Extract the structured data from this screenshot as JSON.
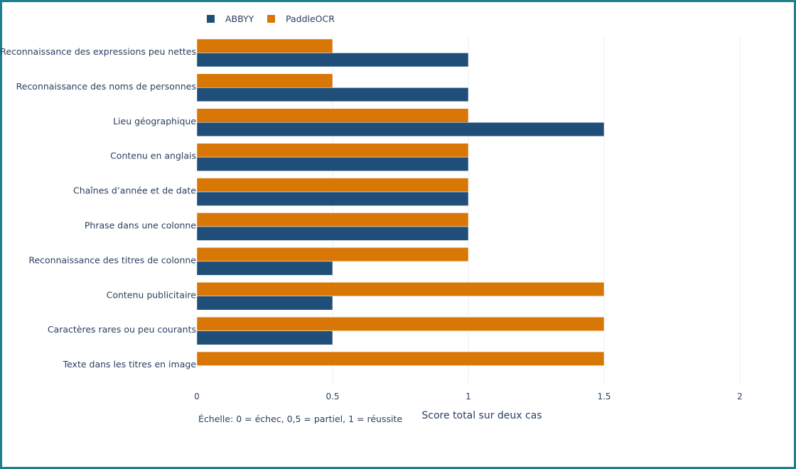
{
  "chart_data": {
    "type": "bar",
    "orientation": "horizontal",
    "categories": [
      "Reconnaissance des expressions peu nettes",
      "Reconnaissance des noms de personnes",
      "Lieu géographique",
      "Contenu en anglais",
      "Chaînes d’année et de date",
      "Phrase dans une colonne",
      "Reconnaissance des titres de colonne",
      "Contenu publicitaire",
      "Caractères rares ou peu courants",
      "Texte dans les titres en image"
    ],
    "series": [
      {
        "name": "ABBYY",
        "color": "#1f4e79",
        "values": [
          1,
          1,
          1.5,
          1,
          1,
          1,
          0.5,
          0.5,
          0.5,
          0
        ]
      },
      {
        "name": "PaddleOCR",
        "color": "#d97706",
        "values": [
          0.5,
          0.5,
          1,
          1,
          1,
          1,
          1,
          1.5,
          1.5,
          1.5
        ]
      }
    ],
    "xlabel": "Score total sur deux cas",
    "xlim": [
      0,
      2
    ],
    "xticks": [
      0,
      0.5,
      1,
      1.5,
      2
    ],
    "xtick_labels": [
      "0",
      "0.5",
      "1",
      "1.5",
      "2"
    ],
    "annotation": "Échelle: 0 = échec, 0,5 = partiel, 1 = réussite",
    "legend_position": "top-left",
    "grid": true
  }
}
